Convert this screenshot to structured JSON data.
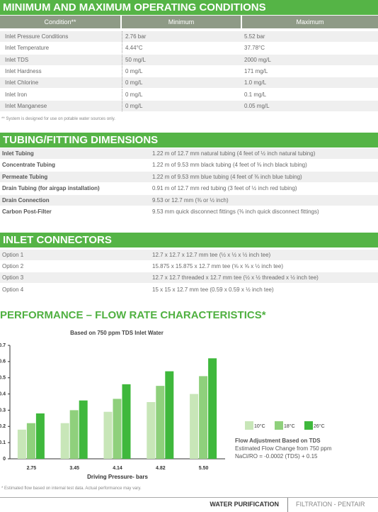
{
  "conditions": {
    "title": "MINIMUM AND MAXIMUM OPERATING CONDITIONS",
    "columns": [
      "Condition**",
      "Minimum",
      "Maximum"
    ],
    "rows": [
      [
        "Inlet Pressure Conditions",
        "2.76 bar",
        "5.52 bar"
      ],
      [
        "Inlet Temperature",
        "4.44°C",
        "37.78°C"
      ],
      [
        "Inlet TDS",
        "50 mg/L",
        "2000 mg/L"
      ],
      [
        "Inlet Hardness",
        "0 mg/L",
        "171 mg/L"
      ],
      [
        "Inlet Chlorine",
        "0 mg/L",
        "1.0 mg/L"
      ],
      [
        "Inlet Iron",
        "0 mg/L",
        "0.1 mg/L"
      ],
      [
        "Inlet Manganese",
        "0 mg/L",
        "0.05 mg/L"
      ]
    ],
    "footnote": "** System is designed for use on potable water sources only."
  },
  "tubing": {
    "title": "TUBING/FITTING DIMENSIONS",
    "rows": [
      [
        "Inlet Tubing",
        "1.22 m of 12.7 mm natural tubing (4 feet of ½ inch natural tubing)"
      ],
      [
        "Concentrate Tubing",
        "1.22 m of 9.53 mm black tubing (4 feet of ⅜ inch black tubing)"
      ],
      [
        "Permeate Tubing",
        "1.22 m of 9.53 mm blue tubing (4 feet of ⅜ inch blue tubing)"
      ],
      [
        "Drain Tubing (for airgap installation)",
        "0.91 m of 12.7 mm red tubing  (3 feet of ½ inch red tubing)"
      ],
      [
        "Drain Connection",
        "9.53 or 12.7 mm (⅜ or ½ inch)"
      ],
      [
        "Carbon Post-Filter",
        "9.53 mm quick disconnect fittings (⅜ inch quick disconnect fittings)"
      ]
    ]
  },
  "connectors": {
    "title": "INLET CONNECTORS",
    "rows": [
      [
        "Option 1",
        "12.7 x 12.7 x 12.7 mm tee (½ x ½ x ½ inch tee)"
      ],
      [
        "Option 2",
        "15.875 x 15.875 x 12.7 mm tee (⅝ x ⅝ x ½ inch tee)"
      ],
      [
        "Option 3",
        "12.7 x 12.7 threaded x 12.7 mm tee (½ x ½ threaded x ½ inch tee)"
      ],
      [
        "Option 4",
        "15 x 15 x 12.7 mm tee (0.59 x 0.59 x ½ inch tee)"
      ]
    ]
  },
  "chart_data": {
    "type": "bar",
    "title": "PERFORMANCE – FLOW RATE CHARACTERISTICS*",
    "subtitle": "Based on 750 ppm TDS Inlet Water",
    "x_label": "Driving Pressure- bars",
    "categories": [
      "2.75",
      "3.45",
      "4.14",
      "4.82",
      "5.50"
    ],
    "series": [
      {
        "name": "10°C",
        "color": "#c8e6b8",
        "values": [
          0.18,
          0.22,
          0.29,
          0.35,
          0.4
        ]
      },
      {
        "name": "18°C",
        "color": "#8fd07c",
        "values": [
          0.22,
          0.3,
          0.37,
          0.45,
          0.51
        ]
      },
      {
        "name": "26°C",
        "color": "#3fb83c",
        "values": [
          0.28,
          0.36,
          0.46,
          0.54,
          0.62
        ]
      }
    ],
    "ylim": [
      0,
      0.7
    ],
    "yticks": [
      0,
      0.1,
      0.2,
      0.3,
      0.4,
      0.5,
      0.6,
      0.7
    ],
    "annotations": [
      "Flow Adjustment Based on TDS",
      "Estimated Flow Change from 750 ppm",
      "NaCl/RO = -0.0002 (TDS) + 0.15"
    ],
    "footnote": "* Estimated flow based on internal test data. Actual performance may vary."
  },
  "footer": {
    "left": "WATER PURIFICATION",
    "right": "FILTRATION - PENTAIR"
  }
}
